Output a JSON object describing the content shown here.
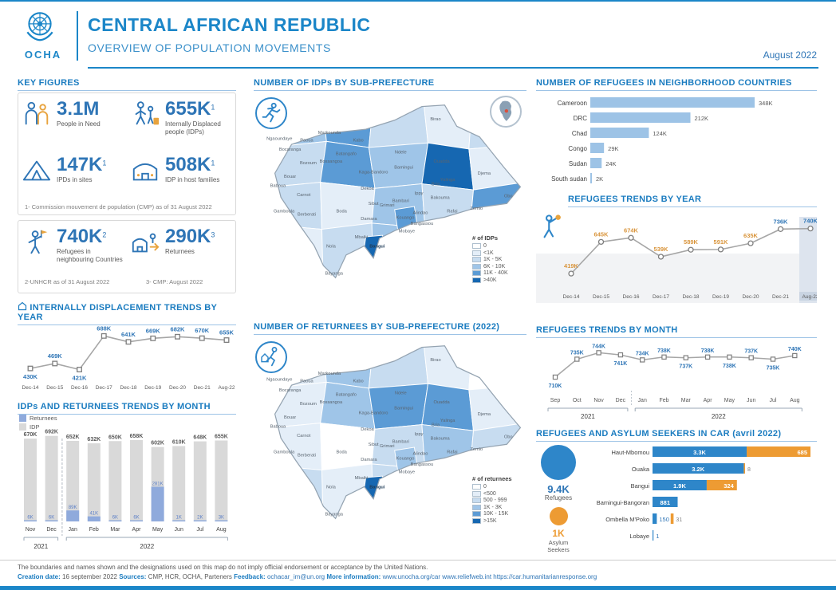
{
  "header": {
    "org": "OCHA",
    "title": "CENTRAL AFRICAN REPUBLIC",
    "subtitle": "OVERVIEW OF POPULATION MOVEMENTS",
    "date": "August 2022"
  },
  "key_figures": {
    "title": "KEY FIGURES",
    "stats": [
      {
        "value": "3.1M",
        "sup": "",
        "label": "People in Need"
      },
      {
        "value": "655K",
        "sup": "1",
        "label": "Internally Displaced people (IDPs)"
      },
      {
        "value": "147K",
        "sup": "1",
        "label": "IPDs in sites"
      },
      {
        "value": "508K",
        "sup": "1",
        "label": "IDP in host families"
      }
    ],
    "note1": "1- Commission mouvement de population (CMP) as of 31 August 2022",
    "stats2": [
      {
        "value": "740K",
        "sup": "2",
        "label": "Refugees in neighbouring Countries"
      },
      {
        "value": "290K",
        "sup": "3",
        "label": "Returnees"
      }
    ],
    "note2": "2-UNHCR as of 31 August 2022",
    "note3": "3- CMP: August 2022"
  },
  "maps": {
    "idp": {
      "title": "NUMBER OF IDPs BY SUB-PREFECTURE",
      "legend_title": "# of IDPs",
      "legend": [
        "0",
        "<1K",
        "1K - 5K",
        "6K - 10K",
        "11K - 40K",
        ">40K"
      ],
      "levels": [
        3,
        4,
        2,
        1,
        2,
        2,
        4,
        3,
        5,
        1,
        2,
        1,
        3,
        2,
        4,
        1,
        2,
        3,
        2,
        3,
        4,
        5
      ]
    },
    "returnees": {
      "title": "NUMBER OF RETURNEES BY SUB-PREFECTURE (2022)",
      "legend_title": "# of returnees",
      "legend": [
        "0",
        "<500",
        "500 - 999",
        "1K - 3K",
        "10K - 15K",
        ">15K"
      ],
      "levels": [
        1,
        3,
        2,
        1,
        0,
        1,
        3,
        4,
        4,
        1,
        1,
        0,
        2,
        3,
        2,
        2,
        1,
        2,
        2,
        3,
        3,
        5
      ]
    },
    "palette": [
      "#ffffff",
      "#e4eef8",
      "#c7dcf0",
      "#9fc5e8",
      "#5b9bd5",
      "#1667b1"
    ],
    "labels": [
      "Birao",
      "Ndele",
      "Ouadda",
      "Yalinga",
      "Djema",
      "Obo",
      "Zemio",
      "Rafai",
      "Bangassou",
      "Bakouma",
      "Bria",
      "Ippy",
      "Bambari",
      "Kouango",
      "Mobaye",
      "Alindao",
      "Grimari",
      "Sibut",
      "Dekoa",
      "Kaga-Bandoro",
      "Bamingui",
      "Kabo",
      "Batangafo",
      "Bossangoa",
      "Markounda",
      "Paoua",
      "Bocaranga",
      "Ngaoundaye",
      "Bozoum",
      "Bouar",
      "Baboua",
      "Carnot",
      "Berberati",
      "Gamboula",
      "Nola",
      "Bayanga",
      "Boda",
      "Mbaiki",
      "Damara",
      "Bangui"
    ]
  },
  "asylum_panel": {
    "refugees_value": "9.4K",
    "refugees_label": "Refugees",
    "asylum_value": "1K",
    "asylum_label": "Asylum Seekers"
  },
  "chart_data": [
    {
      "type": "bar",
      "orientation": "horizontal",
      "title": "NUMBER OF REFUGEES IN NEIGHBORHOOD COUNTRIES",
      "categories": [
        "Cameroon",
        "DRC",
        "Chad",
        "Congo",
        "Sudan",
        "South sudan"
      ],
      "values": [
        348,
        212,
        124,
        29,
        24,
        2
      ],
      "value_labels": [
        "348K",
        "212K",
        "124K",
        "29K",
        "24K",
        "2K"
      ],
      "unit": "K",
      "bar_color": "#9dc3e6"
    },
    {
      "type": "line",
      "title": "REFUGEES TRENDS BY YEAR",
      "categories": [
        "Dec-14",
        "Dec-15",
        "Dec-16",
        "Dec-17",
        "Dec-18",
        "Dec-19",
        "Dec-20",
        "Dec-21",
        "Aug-22"
      ],
      "values": [
        419,
        645,
        674,
        539,
        589,
        591,
        635,
        736,
        740
      ],
      "value_labels": [
        "419K",
        "645K",
        "674K",
        "539K",
        "589K",
        "591K",
        "635K",
        "736K",
        "740K"
      ],
      "unit": "K",
      "ylim": [
        380,
        800
      ],
      "highlight_last": true,
      "label_color": "#d9953c",
      "label_color_last_two": "#2e75b6"
    },
    {
      "type": "line",
      "title": "REFUGEES TRENDS BY MONTH",
      "categories": [
        "Sep",
        "Oct",
        "Nov",
        "Dec",
        "Jan",
        "Feb",
        "Mar",
        "Apr",
        "May",
        "Jun",
        "Jul",
        "Aug"
      ],
      "values": [
        710,
        735,
        744,
        741,
        734,
        738,
        737,
        738,
        738,
        737,
        735,
        740
      ],
      "value_labels": [
        "710K",
        "735K",
        "744K",
        "741K",
        "734K",
        "738K",
        "737K",
        "738K",
        "738K",
        "737K",
        "735K",
        "740K"
      ],
      "unit": "K",
      "ylim": [
        700,
        760
      ],
      "year_groups": [
        {
          "label": "2021",
          "from": 0,
          "to": 3
        },
        {
          "label": "2022",
          "from": 4,
          "to": 11
        }
      ]
    },
    {
      "type": "line",
      "title": "INTERNALLY DISPLACEMENT TRENDS BY YEAR",
      "categories": [
        "Dec-14",
        "Dec-15",
        "Dec-16",
        "Dec-17",
        "Dec-18",
        "Dec-19",
        "Dec-20",
        "Dec-21",
        "Aug-22"
      ],
      "values": [
        430,
        469,
        421,
        688,
        641,
        669,
        682,
        670,
        655
      ],
      "value_labels": [
        "430K",
        "469K",
        "421K",
        "688K",
        "641K",
        "669K",
        "682K",
        "670K",
        "655K"
      ],
      "unit": "K",
      "ylim": [
        380,
        760
      ]
    },
    {
      "type": "bar",
      "title": "IDPs AND RETURNEES TRENDS BY MONTH",
      "categories": [
        "Nov",
        "Dec",
        "Jan",
        "Feb",
        "Mar",
        "Apr",
        "May",
        "Jun",
        "Jul",
        "Aug"
      ],
      "series": [
        {
          "name": "Returnees",
          "color": "#8faadc",
          "values": [
            6,
            6,
            89,
            41,
            6,
            6,
            281,
            1,
            2,
            3
          ],
          "labels": [
            "6K",
            "6K",
            "89K",
            "41K",
            "6K",
            "6K",
            "281K",
            "1K",
            "2K",
            "3K"
          ]
        },
        {
          "name": "IDP",
          "color": "#d9d9d9",
          "values": [
            670,
            692,
            652,
            632,
            650,
            658,
            602,
            610,
            648,
            655
          ],
          "labels": [
            "670K",
            "692K",
            "652K",
            "632K",
            "650K",
            "658K",
            "602K",
            "610K",
            "648K",
            "655K"
          ]
        }
      ],
      "unit": "K",
      "year_groups": [
        {
          "label": "2021",
          "from": 0,
          "to": 1
        },
        {
          "label": "2022",
          "from": 2,
          "to": 9
        }
      ]
    },
    {
      "type": "bar",
      "orientation": "horizontal",
      "stacked": true,
      "title": "REFUGEES AND ASYLUM SEEKERS IN CAR (avril 2022)",
      "categories": [
        "Haut-Mbomou",
        "Ouaka",
        "Bangui",
        "Bamingui-Bangoran",
        "Ombella M'Poko",
        "Lobaye"
      ],
      "series": [
        {
          "name": "Refugees",
          "color": "#2e86c9",
          "values": [
            3300,
            3200,
            1900,
            881,
            150,
            1
          ],
          "labels": [
            "3.3K",
            "3.2K",
            "1.9K",
            "881",
            "150",
            "1"
          ]
        },
        {
          "name": "Asylum seekers",
          "color": "#ed9b33",
          "values": [
            685,
            8,
            324,
            0,
            31,
            0
          ],
          "labels": [
            "685",
            "8",
            "324",
            "",
            "31",
            ""
          ]
        }
      ]
    }
  ],
  "footer": {
    "disclaimer": "The boundaries and names shown and the designations used on this map do not imply official endorsement or acceptance by the United Nations.",
    "creation_label": "Creation date:",
    "creation": "16 september 2022",
    "sources_label": "Sources:",
    "sources": "CMP, HCR, OCHA, Parteners",
    "feedback_label": "Feedback:",
    "feedback": "ochacar_im@un.org",
    "more_label": "More information:",
    "more": "www.unocha.org/car www.reliefweb.int https://car.humanitarianresponse.org"
  }
}
